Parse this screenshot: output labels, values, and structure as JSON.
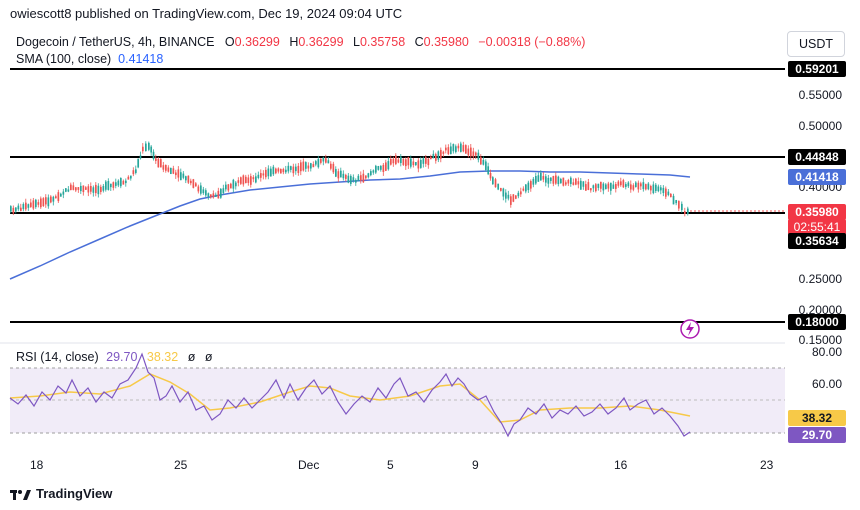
{
  "header": {
    "publisher": "owiescott8 published on TradingView.com, Dec 19, 2024 09:04 UTC"
  },
  "symbol": {
    "title": "Dogecoin / TetherUS, 4h, BINANCE"
  },
  "ohlc": {
    "o_label": "O",
    "o_value": "0.36299",
    "h_label": "H",
    "h_value": "0.36299",
    "l_label": "L",
    "l_value": "0.35758",
    "c_label": "C",
    "c_value": "0.35980",
    "change": "−0.00318 (−0.88%)"
  },
  "sma": {
    "label": "SMA (100, close)",
    "value": "0.41418"
  },
  "currency_button": "USDT",
  "price_axis": {
    "ticks": [
      "0.55000",
      "0.50000",
      "0.40000",
      "0.25000",
      "0.20000",
      "0.15000"
    ]
  },
  "badges": {
    "level_1": "0.59201",
    "level_2": "0.44848",
    "sma_value": "0.41418",
    "last_price": "0.35980",
    "countdown": "02:55:41",
    "level_3": "0.35634",
    "level_4": "0.18000"
  },
  "rsi": {
    "label": "RSI (14, close)",
    "value": "29.70",
    "ma_value": "38.32",
    "extra1": "ø",
    "extra2": "ø",
    "axis_ticks": [
      "80.00",
      "60.00"
    ],
    "ma_badge": "38.32",
    "rsi_badge": "29.70"
  },
  "time_axis": {
    "labels": [
      "18",
      "25",
      "Dec",
      "5",
      "9",
      "16",
      "23"
    ]
  },
  "footer": {
    "brand": "TradingView"
  },
  "colors": {
    "up": "#26a69a",
    "down": "#ef5350",
    "sma": "#4a6fd8",
    "rsi": "#7e57c2",
    "rsi_ma": "#f7c948",
    "rsi_band": "#ede7f6"
  },
  "chart_data": [
    {
      "type": "candlestick",
      "title": "Dogecoin / TetherUS, 4h, BINANCE",
      "horizontal_levels": [
        0.59201,
        0.44848,
        0.35634,
        0.18
      ],
      "sma_last": 0.41418,
      "last_close": 0.3598,
      "x_labels": [
        "18",
        "25",
        "Dec",
        "5",
        "9",
        "16",
        "23"
      ]
    },
    {
      "type": "line",
      "title": "RSI (14, close)",
      "series": [
        {
          "name": "RSI",
          "last": 29.7
        },
        {
          "name": "RSI MA",
          "last": 38.32
        }
      ],
      "y_ticks": [
        80,
        60
      ]
    }
  ]
}
